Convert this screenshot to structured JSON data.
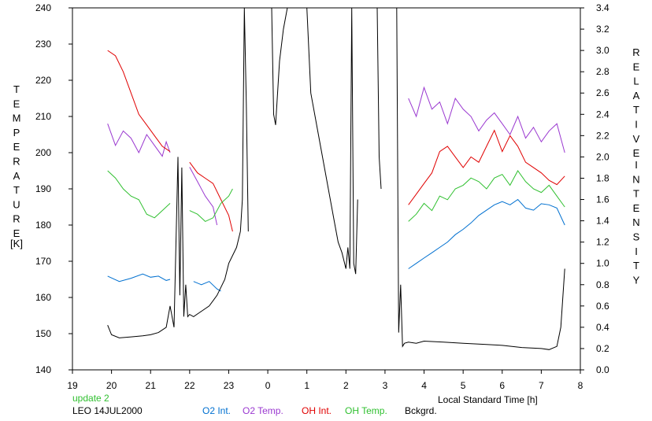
{
  "chart_data": {
    "type": "line",
    "x_axis": {
      "label": "Local Standard Time [h]",
      "tick_labels": [
        "19",
        "20",
        "21",
        "22",
        "23",
        "0",
        "1",
        "2",
        "3",
        "4",
        "5",
        "6",
        "7",
        "8"
      ],
      "range": [
        19,
        32
      ]
    },
    "y_left": {
      "label_letters": [
        "T",
        "E",
        "M",
        "P",
        "E",
        "R",
        "A",
        "T",
        "U",
        "R",
        "E"
      ],
      "unit": "[K]",
      "ticks": [
        240,
        230,
        220,
        210,
        200,
        190,
        180,
        170,
        160,
        150,
        140
      ],
      "range": [
        140,
        240
      ]
    },
    "y_right": {
      "label_letters_1": [
        "R",
        "E",
        "L",
        "A",
        "T",
        "I",
        "V",
        "E"
      ],
      "label_letters_2": [
        "I",
        "N",
        "T",
        "E",
        "N",
        "S",
        "I",
        "T",
        "Y"
      ],
      "ticks": [
        "3.4",
        "3.2",
        "3.0",
        "2.8",
        "2.6",
        "2.4",
        "2.2",
        "2.0",
        "1.8",
        "1.6",
        "1.4",
        "1.2",
        "1.0",
        "0.8",
        "0.6",
        "0.4",
        "0.2",
        "0.0"
      ],
      "range": [
        0,
        3.4
      ]
    },
    "grid": false,
    "legend_placement": "bottom",
    "annotations": {
      "update": "update 2",
      "station": "LEO 14JUL2000"
    },
    "series": [
      {
        "name": "O2 Int.",
        "axis": "right",
        "color": "#0070d0",
        "segments": [
          {
            "x": [
              19.9,
              20.2,
              20.5,
              20.8,
              21.0,
              21.2,
              21.4,
              21.5
            ],
            "y": [
              0.88,
              0.83,
              0.86,
              0.9,
              0.87,
              0.88,
              0.84,
              0.85
            ]
          },
          {
            "x": [
              22.1,
              22.3,
              22.5,
              22.7,
              22.8
            ],
            "y": [
              0.83,
              0.8,
              0.83,
              0.76,
              0.74
            ]
          },
          {
            "x": [
              27.6,
              27.8,
              28.0,
              28.2,
              28.4,
              28.6,
              28.8,
              29.0,
              29.2,
              29.4,
              29.6,
              29.8,
              30.0,
              30.2,
              30.4,
              30.6,
              30.8,
              31.0,
              31.2,
              31.4,
              31.6
            ],
            "y": [
              0.95,
              1.0,
              1.05,
              1.1,
              1.15,
              1.2,
              1.27,
              1.32,
              1.38,
              1.45,
              1.5,
              1.55,
              1.58,
              1.55,
              1.6,
              1.52,
              1.5,
              1.56,
              1.55,
              1.52,
              1.36
            ]
          }
        ]
      },
      {
        "name": "O2 Temp.",
        "axis": "left",
        "color": "#9a38d0",
        "segments": [
          {
            "x": [
              19.9,
              20.1,
              20.3,
              20.5,
              20.7,
              20.9,
              21.1,
              21.3,
              21.4,
              21.5
            ],
            "y": [
              208,
              202,
              206,
              204,
              200,
              205,
              202,
              199,
              203,
              200
            ]
          },
          {
            "x": [
              22.0,
              22.2,
              22.4,
              22.6,
              22.7
            ],
            "y": [
              196,
              192,
              188,
              185,
              180
            ]
          },
          {
            "x": [
              27.6,
              27.8,
              28.0,
              28.2,
              28.4,
              28.6,
              28.8,
              29.0,
              29.2,
              29.4,
              29.6,
              29.8,
              30.0,
              30.2,
              30.4,
              30.6,
              30.8,
              31.0,
              31.2,
              31.4,
              31.6
            ],
            "y": [
              215,
              210,
              218,
              212,
              214,
              208,
              215,
              212,
              210,
              206,
              209,
              211,
              208,
              205,
              210,
              204,
              207,
              203,
              206,
              208,
              200
            ]
          }
        ]
      },
      {
        "name": "OH Int.",
        "axis": "right",
        "color": "#e00000",
        "segments": [
          {
            "x": [
              19.9,
              20.1,
              20.3,
              20.5,
              20.7,
              20.9,
              21.1,
              21.3,
              21.5
            ],
            "y": [
              3.0,
              2.95,
              2.8,
              2.6,
              2.4,
              2.3,
              2.2,
              2.1,
              2.05
            ]
          },
          {
            "x": [
              22.0,
              22.2,
              22.4,
              22.6,
              22.8,
              23.0,
              23.1
            ],
            "y": [
              1.95,
              1.85,
              1.8,
              1.75,
              1.6,
              1.45,
              1.3
            ]
          },
          {
            "x": [
              27.6,
              27.8,
              28.0,
              28.2,
              28.4,
              28.6,
              28.8,
              29.0,
              29.2,
              29.4,
              29.6,
              29.8,
              30.0,
              30.2,
              30.4,
              30.6,
              30.8,
              31.0,
              31.2,
              31.4,
              31.6
            ],
            "y": [
              1.55,
              1.65,
              1.75,
              1.85,
              2.05,
              2.1,
              2.0,
              1.9,
              2.0,
              1.95,
              2.1,
              2.25,
              2.05,
              2.2,
              2.1,
              1.95,
              1.9,
              1.85,
              1.78,
              1.74,
              1.82
            ]
          }
        ]
      },
      {
        "name": "OH Temp.",
        "axis": "left",
        "color": "#30c030",
        "segments": [
          {
            "x": [
              19.9,
              20.1,
              20.3,
              20.5,
              20.7,
              20.9,
              21.1,
              21.3,
              21.5
            ],
            "y": [
              195,
              193,
              190,
              188,
              187,
              183,
              182,
              184,
              186
            ]
          },
          {
            "x": [
              22.0,
              22.2,
              22.4,
              22.6,
              22.8,
              23.0,
              23.1
            ],
            "y": [
              184,
              183,
              181,
              182,
              186,
              188,
              190
            ]
          },
          {
            "x": [
              27.6,
              27.8,
              28.0,
              28.2,
              28.4,
              28.6,
              28.8,
              29.0,
              29.2,
              29.4,
              29.6,
              29.8,
              30.0,
              30.2,
              30.4,
              30.6,
              30.8,
              31.0,
              31.2,
              31.4,
              31.6
            ],
            "y": [
              181,
              183,
              186,
              184,
              188,
              187,
              190,
              191,
              193,
              192,
              190,
              193,
              194,
              191,
              195,
              192,
              190,
              189,
              191,
              188,
              185
            ]
          }
        ]
      },
      {
        "name": "Bckgrd.",
        "axis": "right",
        "color": "#000000",
        "segments": [
          {
            "x": [
              19.9,
              20.0,
              20.2,
              20.5,
              20.8,
              21.0,
              21.2,
              21.4,
              21.5,
              21.6,
              21.7,
              21.75,
              21.8,
              21.85,
              21.9,
              21.95,
              22.0,
              22.1,
              22.3,
              22.5,
              22.7,
              22.9,
              23.0,
              23.2,
              23.3,
              23.35,
              23.4,
              23.45,
              23.5
            ],
            "y": [
              0.42,
              0.33,
              0.3,
              0.31,
              0.32,
              0.33,
              0.35,
              0.4,
              0.6,
              0.4,
              2.0,
              0.7,
              1.9,
              0.5,
              0.8,
              0.5,
              0.52,
              0.5,
              0.55,
              0.6,
              0.7,
              0.85,
              1.0,
              1.15,
              1.3,
              1.6,
              3.4,
              2.5,
              1.3
            ]
          },
          {
            "x": [
              24.1,
              24.15,
              24.2,
              24.3,
              24.4,
              24.5
            ],
            "y": [
              3.4,
              2.4,
              2.3,
              2.9,
              3.2,
              3.4
            ]
          },
          {
            "x": [
              25.0,
              25.1,
              25.3,
              25.5,
              25.7,
              25.8,
              25.9,
              26.0,
              26.05,
              26.1,
              26.15,
              26.2,
              26.25,
              26.3
            ],
            "y": [
              3.4,
              2.6,
              2.2,
              1.8,
              1.4,
              1.2,
              1.1,
              0.95,
              1.15,
              0.95,
              3.4,
              1.0,
              0.9,
              1.6
            ]
          },
          {
            "x": [
              26.8,
              26.85,
              26.9
            ],
            "y": [
              3.4,
              2.0,
              1.7
            ]
          },
          {
            "x": [
              27.3,
              27.35,
              27.4,
              27.45,
              27.5,
              27.6,
              27.8,
              28.0,
              28.5,
              29.0,
              29.5,
              30.0,
              30.5,
              31.0,
              31.2,
              31.4,
              31.5,
              31.6
            ],
            "y": [
              3.4,
              0.35,
              0.8,
              0.22,
              0.25,
              0.26,
              0.25,
              0.27,
              0.26,
              0.25,
              0.24,
              0.23,
              0.21,
              0.2,
              0.19,
              0.22,
              0.4,
              0.95
            ]
          }
        ]
      }
    ]
  }
}
